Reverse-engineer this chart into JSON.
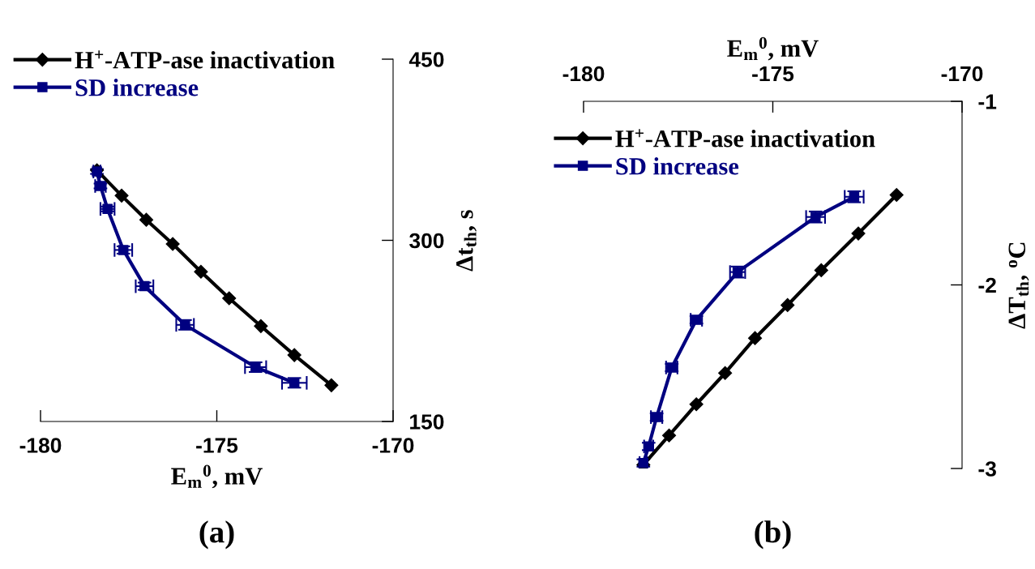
{
  "chart_data": [
    {
      "type": "line",
      "xlabel": "E$_{m}$$^{0}$, mV",
      "ylabel": "Δt$_{th}$, s",
      "xlim": [
        -180,
        -170
      ],
      "xticks": [
        -180,
        -175,
        -170
      ],
      "ylim": [
        150,
        450
      ],
      "yticks": [
        150,
        300,
        450
      ],
      "grid": false,
      "legend": "top left",
      "annotations": [
        "(a)"
      ],
      "series": [
        {
          "name": "H$^{+}$-ATP-ase inactivation",
          "color": "#000000",
          "marker": "diamond",
          "x": [
            -178.4,
            -177.7,
            -177.0,
            -176.25,
            -175.45,
            -174.65,
            -173.75,
            -172.8,
            -171.75
          ],
          "values": [
            358,
            337,
            317,
            297,
            274,
            252,
            229,
            205,
            180
          ]
        },
        {
          "name": "SD increase",
          "color": "#000080",
          "marker": "square",
          "x": [
            -178.4,
            -178.3,
            -178.1,
            -177.65,
            -177.05,
            -175.9,
            -173.9,
            -172.8
          ],
          "values": [
            357,
            345,
            326,
            292,
            262,
            230,
            195,
            182
          ],
          "errors": [
            2,
            2,
            2,
            3,
            3,
            4,
            4,
            4
          ],
          "xerrors": [
            0.1,
            0.15,
            0.2,
            0.25,
            0.25,
            0.25,
            0.3,
            0.35
          ]
        }
      ]
    },
    {
      "type": "line",
      "xlabel": "E$_{m}$$^{0}$, mV",
      "ylabel": "ΔT$_{th}$, $^{o}$C",
      "xlim": [
        -180,
        -170
      ],
      "xticks": [
        -180,
        -175,
        -170
      ],
      "ylim": [
        -3,
        -1
      ],
      "yticks": [
        -3,
        -2,
        -1
      ],
      "grid": false,
      "legend": "top left",
      "annotations": [
        "(b)"
      ],
      "series": [
        {
          "name": "H$^{+}$-ATP-ase inactivation",
          "color": "#000000",
          "marker": "diamond",
          "x": [
            -178.42,
            -177.74,
            -177.02,
            -176.26,
            -175.47,
            -174.61,
            -173.72,
            -172.74,
            -171.73
          ],
          "values": [
            -2.98,
            -2.82,
            -2.65,
            -2.48,
            -2.29,
            -2.11,
            -1.92,
            -1.72,
            -1.51
          ]
        },
        {
          "name": "SD increase",
          "color": "#000080",
          "marker": "square",
          "x": [
            -178.42,
            -178.28,
            -178.07,
            -177.67,
            -177.02,
            -175.93,
            -173.87,
            -172.85
          ],
          "values": [
            -2.97,
            -2.88,
            -2.72,
            -2.45,
            -2.19,
            -1.93,
            -1.63,
            -1.52
          ],
          "errors": [
            0.02,
            0.02,
            0.02,
            0.02,
            0.02,
            0.03,
            0.03,
            0.03
          ],
          "xerrors": [
            0.1,
            0.12,
            0.15,
            0.15,
            0.15,
            0.2,
            0.25,
            0.25
          ]
        }
      ]
    }
  ]
}
